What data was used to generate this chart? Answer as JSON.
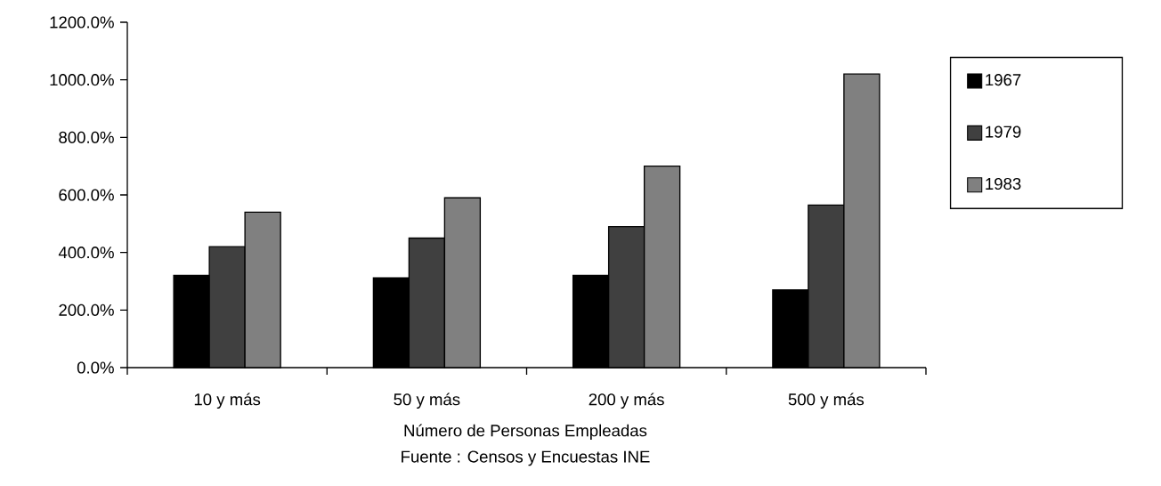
{
  "chart_data": {
    "type": "bar",
    "categories": [
      "10 y más",
      "50 y más",
      "200 y más",
      "500 y más"
    ],
    "series": [
      {
        "name": "1967",
        "color": "#000000",
        "values": [
          320,
          312,
          320,
          270
        ]
      },
      {
        "name": "1979",
        "color": "#404040",
        "values": [
          420,
          450,
          490,
          565
        ]
      },
      {
        "name": "1983",
        "color": "#808080",
        "values": [
          540,
          590,
          700,
          1020
        ]
      }
    ],
    "ylim": [
      0,
      1200
    ],
    "yticks": [
      {
        "value": 0,
        "label": "0.0%"
      },
      {
        "value": 200,
        "label": "200.0%"
      },
      {
        "value": 400,
        "label": "400.0%"
      },
      {
        "value": 600,
        "label": "600.0%"
      },
      {
        "value": 800,
        "label": "800.0%"
      },
      {
        "value": 1000,
        "label": "1000.0%"
      },
      {
        "value": 1200,
        "label": "1200.0%"
      }
    ],
    "xlabel": "Número de Personas Empleadas",
    "annotations": [
      "Fuente : Censos y Encuestas INE"
    ],
    "legend": "right"
  }
}
